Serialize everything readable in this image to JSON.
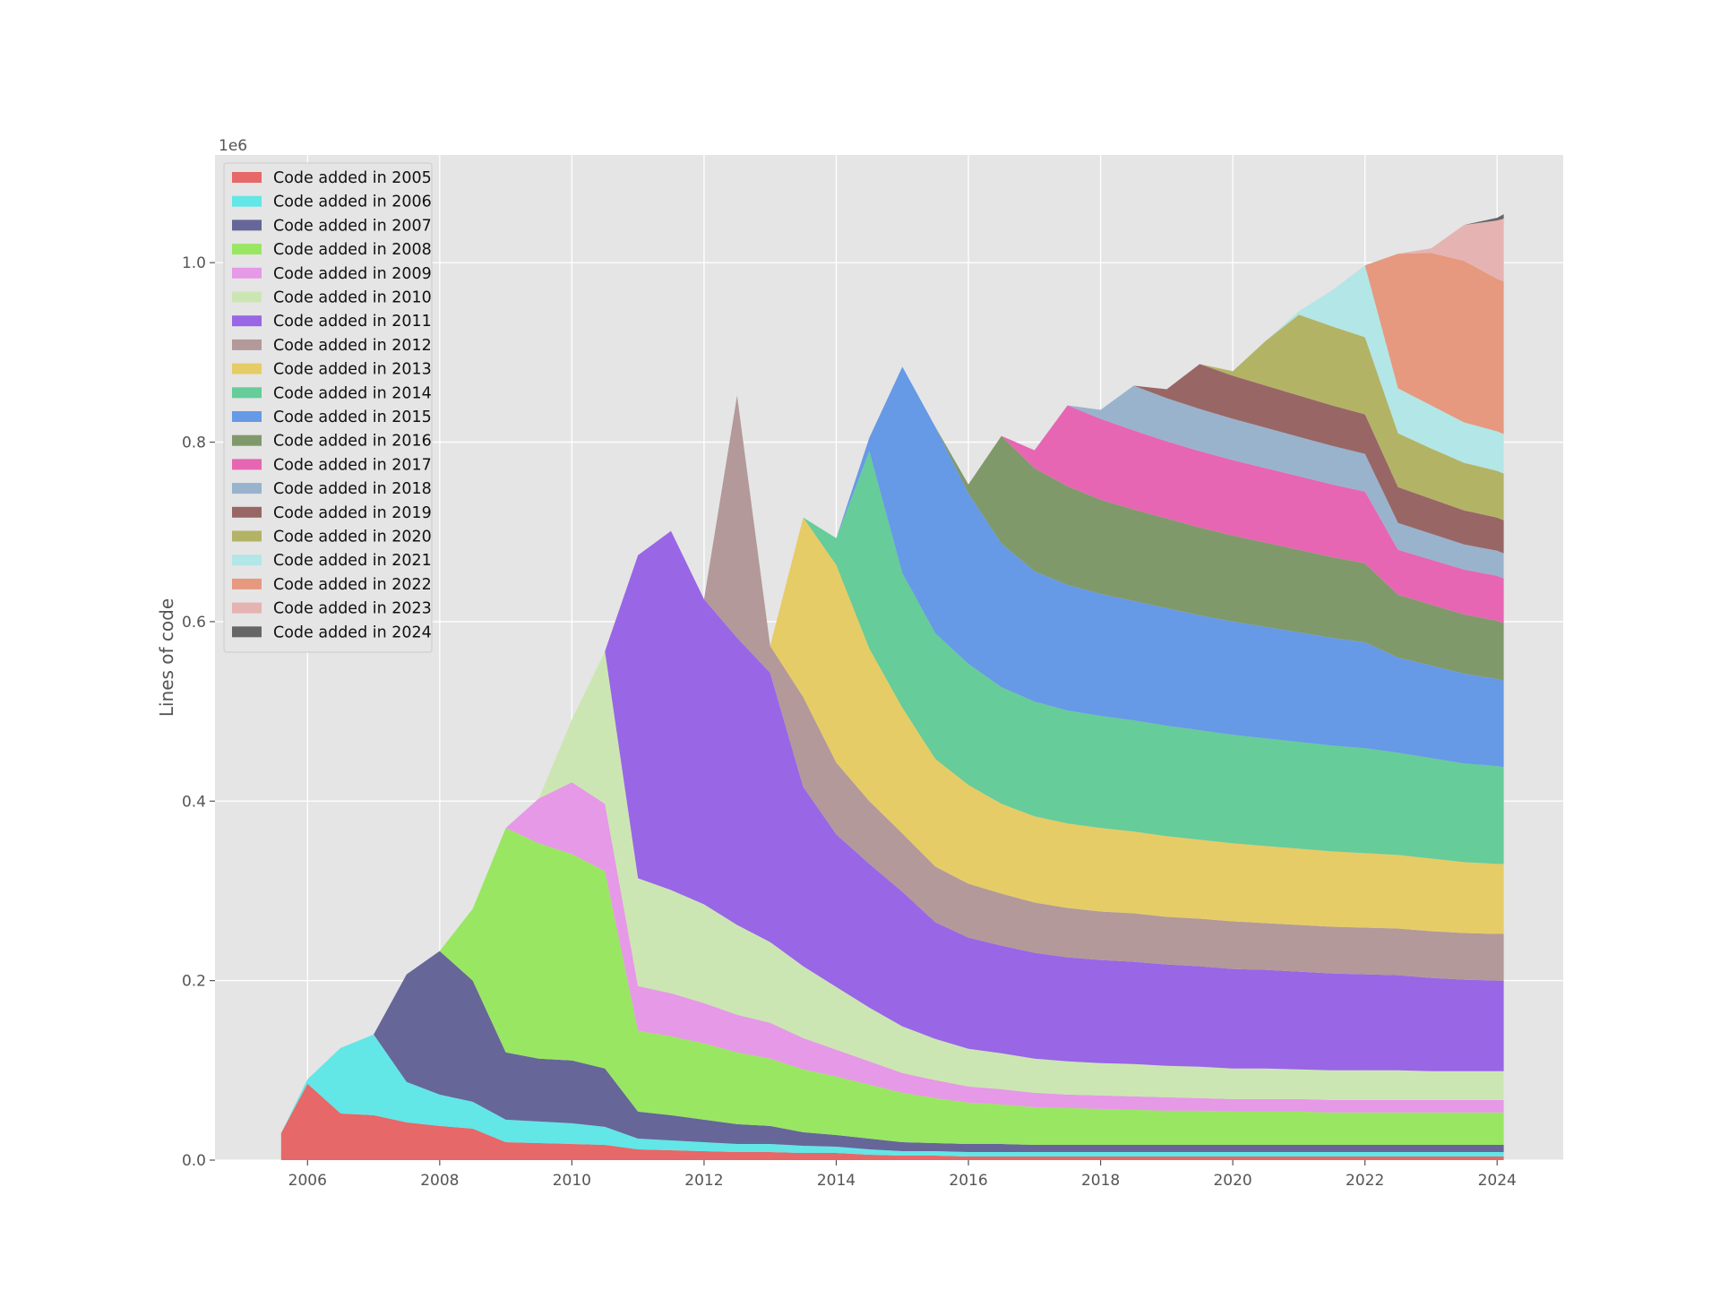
{
  "chart_data": {
    "type": "area",
    "stacked": true,
    "title": "",
    "xlabel": "",
    "ylabel": "Lines of code",
    "y_offset_label": "1e6",
    "xlim": [
      2004.6,
      2025.0
    ],
    "ylim": [
      0,
      1.12
    ],
    "x_ticks": [
      2006,
      2008,
      2010,
      2012,
      2014,
      2016,
      2018,
      2020,
      2022,
      2024
    ],
    "x_tick_labels": [
      "2006",
      "2008",
      "2010",
      "2012",
      "2014",
      "2016",
      "2018",
      "2020",
      "2022",
      "2024"
    ],
    "y_ticks": [
      0,
      0.2,
      0.4,
      0.6,
      0.8,
      1.0
    ],
    "y_tick_labels": [
      "0.0",
      "0.2",
      "0.4",
      "0.6",
      "0.8",
      "1.0"
    ],
    "grid": true,
    "legend_position": "upper-left",
    "x": [
      2005.6,
      2006.0,
      2006.5,
      2007.0,
      2007.5,
      2008.0,
      2008.5,
      2009.0,
      2009.5,
      2010.0,
      2010.5,
      2011.0,
      2011.5,
      2012.0,
      2012.5,
      2013.0,
      2013.5,
      2014.0,
      2014.5,
      2015.0,
      2015.5,
      2016.0,
      2016.5,
      2017.0,
      2017.5,
      2018.0,
      2018.5,
      2019.0,
      2019.5,
      2020.0,
      2020.5,
      2021.0,
      2021.5,
      2022.0,
      2022.5,
      2023.0,
      2023.5,
      2024.0,
      2024.1
    ],
    "series": [
      {
        "name": "Code added in 2005",
        "color": "#e66868",
        "values": [
          0.03,
          0.085,
          0.052,
          0.05,
          0.042,
          0.038,
          0.035,
          0.02,
          0.019,
          0.018,
          0.017,
          0.012,
          0.011,
          0.01,
          0.009,
          0.009,
          0.008,
          0.008,
          0.006,
          0.005,
          0.005,
          0.004,
          0.004,
          0.004,
          0.004,
          0.004,
          0.004,
          0.004,
          0.004,
          0.004,
          0.004,
          0.004,
          0.004,
          0.004,
          0.004,
          0.004,
          0.004,
          0.004,
          0.004
        ]
      },
      {
        "name": "Code added in 2006",
        "color": "#63e6e6",
        "values": [
          0,
          0.005,
          0.073,
          0.09,
          0.045,
          0.035,
          0.03,
          0.025,
          0.024,
          0.023,
          0.02,
          0.012,
          0.011,
          0.01,
          0.009,
          0.009,
          0.008,
          0.007,
          0.006,
          0.005,
          0.005,
          0.005,
          0.005,
          0.005,
          0.005,
          0.005,
          0.005,
          0.005,
          0.005,
          0.005,
          0.005,
          0.005,
          0.005,
          0.005,
          0.005,
          0.005,
          0.005,
          0.005,
          0.005
        ]
      },
      {
        "name": "Code added in 2007",
        "color": "#666699",
        "values": [
          0,
          0,
          0,
          0,
          0.12,
          0.16,
          0.135,
          0.075,
          0.07,
          0.07,
          0.065,
          0.03,
          0.028,
          0.025,
          0.022,
          0.02,
          0.015,
          0.013,
          0.012,
          0.01,
          0.009,
          0.009,
          0.009,
          0.008,
          0.008,
          0.008,
          0.008,
          0.008,
          0.008,
          0.008,
          0.008,
          0.008,
          0.008,
          0.008,
          0.008,
          0.008,
          0.008,
          0.008,
          0.008
        ]
      },
      {
        "name": "Code added in 2008",
        "color": "#99e663",
        "values": [
          0,
          0,
          0,
          0,
          0,
          0,
          0.08,
          0.25,
          0.24,
          0.23,
          0.22,
          0.09,
          0.088,
          0.085,
          0.08,
          0.075,
          0.07,
          0.065,
          0.06,
          0.055,
          0.05,
          0.046,
          0.044,
          0.042,
          0.041,
          0.04,
          0.039,
          0.038,
          0.038,
          0.037,
          0.037,
          0.037,
          0.036,
          0.036,
          0.036,
          0.036,
          0.036,
          0.036,
          0.036
        ]
      },
      {
        "name": "Code added in 2009",
        "color": "#e699e6",
        "values": [
          0,
          0,
          0,
          0,
          0,
          0,
          0,
          0,
          0.05,
          0.08,
          0.075,
          0.05,
          0.048,
          0.045,
          0.042,
          0.04,
          0.035,
          0.03,
          0.026,
          0.022,
          0.02,
          0.018,
          0.017,
          0.016,
          0.015,
          0.015,
          0.015,
          0.015,
          0.014,
          0.014,
          0.014,
          0.014,
          0.014,
          0.014,
          0.014,
          0.014,
          0.014,
          0.014,
          0.014
        ]
      },
      {
        "name": "Code added in 2010",
        "color": "#cce6b3",
        "values": [
          0,
          0,
          0,
          0,
          0,
          0,
          0,
          0,
          0,
          0.07,
          0.17,
          0.12,
          0.115,
          0.11,
          0.1,
          0.09,
          0.08,
          0.07,
          0.06,
          0.052,
          0.046,
          0.042,
          0.04,
          0.038,
          0.037,
          0.036,
          0.036,
          0.035,
          0.035,
          0.034,
          0.034,
          0.033,
          0.033,
          0.033,
          0.033,
          0.032,
          0.032,
          0.032,
          0.032
        ]
      },
      {
        "name": "Code added in 2011",
        "color": "#9966e6",
        "values": [
          0,
          0,
          0,
          0,
          0,
          0,
          0,
          0,
          0,
          0,
          0,
          0.36,
          0.4,
          0.34,
          0.32,
          0.3,
          0.2,
          0.17,
          0.16,
          0.15,
          0.13,
          0.124,
          0.12,
          0.118,
          0.116,
          0.115,
          0.114,
          0.113,
          0.112,
          0.111,
          0.11,
          0.109,
          0.108,
          0.107,
          0.106,
          0.104,
          0.102,
          0.101,
          0.101
        ]
      },
      {
        "name": "Code added in 2012",
        "color": "#b39999",
        "values": [
          0,
          0,
          0,
          0,
          0,
          0,
          0,
          0,
          0,
          0,
          0,
          0,
          0,
          0,
          0.27,
          0.03,
          0.1,
          0.08,
          0.07,
          0.065,
          0.062,
          0.06,
          0.058,
          0.056,
          0.055,
          0.054,
          0.054,
          0.053,
          0.053,
          0.053,
          0.052,
          0.052,
          0.052,
          0.052,
          0.052,
          0.052,
          0.052,
          0.052,
          0.052
        ]
      },
      {
        "name": "Code added in 2013",
        "color": "#e6cc66",
        "values": [
          0,
          0,
          0,
          0,
          0,
          0,
          0,
          0,
          0,
          0,
          0,
          0,
          0,
          0,
          0,
          0,
          0.2,
          0.22,
          0.17,
          0.14,
          0.12,
          0.11,
          0.1,
          0.096,
          0.094,
          0.093,
          0.091,
          0.09,
          0.088,
          0.087,
          0.086,
          0.085,
          0.084,
          0.083,
          0.082,
          0.081,
          0.079,
          0.078,
          0.078
        ]
      },
      {
        "name": "Code added in 2014",
        "color": "#66cc99",
        "values": [
          0,
          0,
          0,
          0,
          0,
          0,
          0,
          0,
          0,
          0,
          0,
          0,
          0,
          0,
          0,
          0,
          0,
          0.03,
          0.22,
          0.15,
          0.14,
          0.135,
          0.13,
          0.128,
          0.126,
          0.125,
          0.124,
          0.123,
          0.122,
          0.121,
          0.12,
          0.119,
          0.118,
          0.117,
          0.114,
          0.112,
          0.11,
          0.109,
          0.108
        ]
      },
      {
        "name": "Code added in 2015",
        "color": "#6699e6",
        "values": [
          0,
          0,
          0,
          0,
          0,
          0,
          0,
          0,
          0,
          0,
          0,
          0,
          0,
          0,
          0,
          0,
          0,
          0,
          0.015,
          0.23,
          0.23,
          0.19,
          0.16,
          0.145,
          0.14,
          0.136,
          0.133,
          0.131,
          0.128,
          0.126,
          0.124,
          0.122,
          0.12,
          0.118,
          0.106,
          0.103,
          0.1,
          0.097,
          0.096
        ]
      },
      {
        "name": "Code added in 2016",
        "color": "#80996a",
        "values": [
          0,
          0,
          0,
          0,
          0,
          0,
          0,
          0,
          0,
          0,
          0,
          0,
          0,
          0,
          0,
          0,
          0,
          0,
          0,
          0,
          0,
          0.01,
          0.12,
          0.115,
          0.11,
          0.105,
          0.102,
          0.1,
          0.098,
          0.096,
          0.094,
          0.092,
          0.09,
          0.088,
          0.07,
          0.068,
          0.066,
          0.065,
          0.064
        ]
      },
      {
        "name": "Code added in 2017",
        "color": "#e666b3",
        "values": [
          0,
          0,
          0,
          0,
          0,
          0,
          0,
          0,
          0,
          0,
          0,
          0,
          0,
          0,
          0,
          0,
          0,
          0,
          0,
          0,
          0,
          0,
          0,
          0.02,
          0.09,
          0.09,
          0.088,
          0.086,
          0.085,
          0.084,
          0.083,
          0.082,
          0.081,
          0.08,
          0.05,
          0.05,
          0.05,
          0.05,
          0.05
        ]
      },
      {
        "name": "Code added in 2018",
        "color": "#99b3cc",
        "values": [
          0,
          0,
          0,
          0,
          0,
          0,
          0,
          0,
          0,
          0,
          0,
          0,
          0,
          0,
          0,
          0,
          0,
          0,
          0,
          0,
          0,
          0,
          0,
          0,
          0,
          0.01,
          0.05,
          0.048,
          0.047,
          0.046,
          0.045,
          0.044,
          0.043,
          0.042,
          0.03,
          0.029,
          0.028,
          0.028,
          0.028
        ]
      },
      {
        "name": "Code added in 2019",
        "color": "#996666",
        "values": [
          0,
          0,
          0,
          0,
          0,
          0,
          0,
          0,
          0,
          0,
          0,
          0,
          0,
          0,
          0,
          0,
          0,
          0,
          0,
          0,
          0,
          0,
          0,
          0,
          0,
          0,
          0,
          0.01,
          0.05,
          0.048,
          0.047,
          0.046,
          0.045,
          0.044,
          0.04,
          0.039,
          0.038,
          0.037,
          0.037
        ]
      },
      {
        "name": "Code added in 2020",
        "color": "#b3b366",
        "values": [
          0,
          0,
          0,
          0,
          0,
          0,
          0,
          0,
          0,
          0,
          0,
          0,
          0,
          0,
          0,
          0,
          0,
          0,
          0,
          0,
          0,
          0,
          0,
          0,
          0,
          0,
          0,
          0,
          0,
          0.005,
          0.05,
          0.09,
          0.088,
          0.086,
          0.06,
          0.056,
          0.053,
          0.052,
          0.052
        ]
      },
      {
        "name": "Code added in 2021",
        "color": "#b3e6e6",
        "values": [
          0,
          0,
          0,
          0,
          0,
          0,
          0,
          0,
          0,
          0,
          0,
          0,
          0,
          0,
          0,
          0,
          0,
          0,
          0,
          0,
          0,
          0,
          0,
          0,
          0,
          0,
          0,
          0,
          0,
          0,
          0,
          0.004,
          0.04,
          0.08,
          0.05,
          0.048,
          0.045,
          0.044,
          0.044
        ]
      },
      {
        "name": "Code added in 2022",
        "color": "#e6997f",
        "values": [
          0,
          0,
          0,
          0,
          0,
          0,
          0,
          0,
          0,
          0,
          0,
          0,
          0,
          0,
          0,
          0,
          0,
          0,
          0,
          0,
          0,
          0,
          0,
          0,
          0,
          0,
          0,
          0,
          0,
          0,
          0,
          0,
          0,
          0,
          0.15,
          0.17,
          0.18,
          0.17,
          0.17
        ]
      },
      {
        "name": "Code added in 2023",
        "color": "#e6b3b3",
        "values": [
          0,
          0,
          0,
          0,
          0,
          0,
          0,
          0,
          0,
          0,
          0,
          0,
          0,
          0,
          0,
          0,
          0,
          0,
          0,
          0,
          0,
          0,
          0,
          0,
          0,
          0,
          0,
          0,
          0,
          0,
          0,
          0,
          0,
          0,
          0,
          0.005,
          0.04,
          0.065,
          0.07
        ]
      },
      {
        "name": "Code added in 2024",
        "color": "#666666",
        "values": [
          0,
          0,
          0,
          0,
          0,
          0,
          0,
          0,
          0,
          0,
          0,
          0,
          0,
          0,
          0,
          0,
          0,
          0,
          0,
          0,
          0,
          0,
          0,
          0,
          0,
          0,
          0,
          0,
          0,
          0,
          0,
          0,
          0,
          0,
          0,
          0,
          0,
          0.003,
          0.005
        ]
      }
    ]
  },
  "colors": {
    "plot_background": "#e5e5e5",
    "grid": "#ffffff",
    "legend_background": "#e5e5e5",
    "legend_border": "#cccccc"
  }
}
